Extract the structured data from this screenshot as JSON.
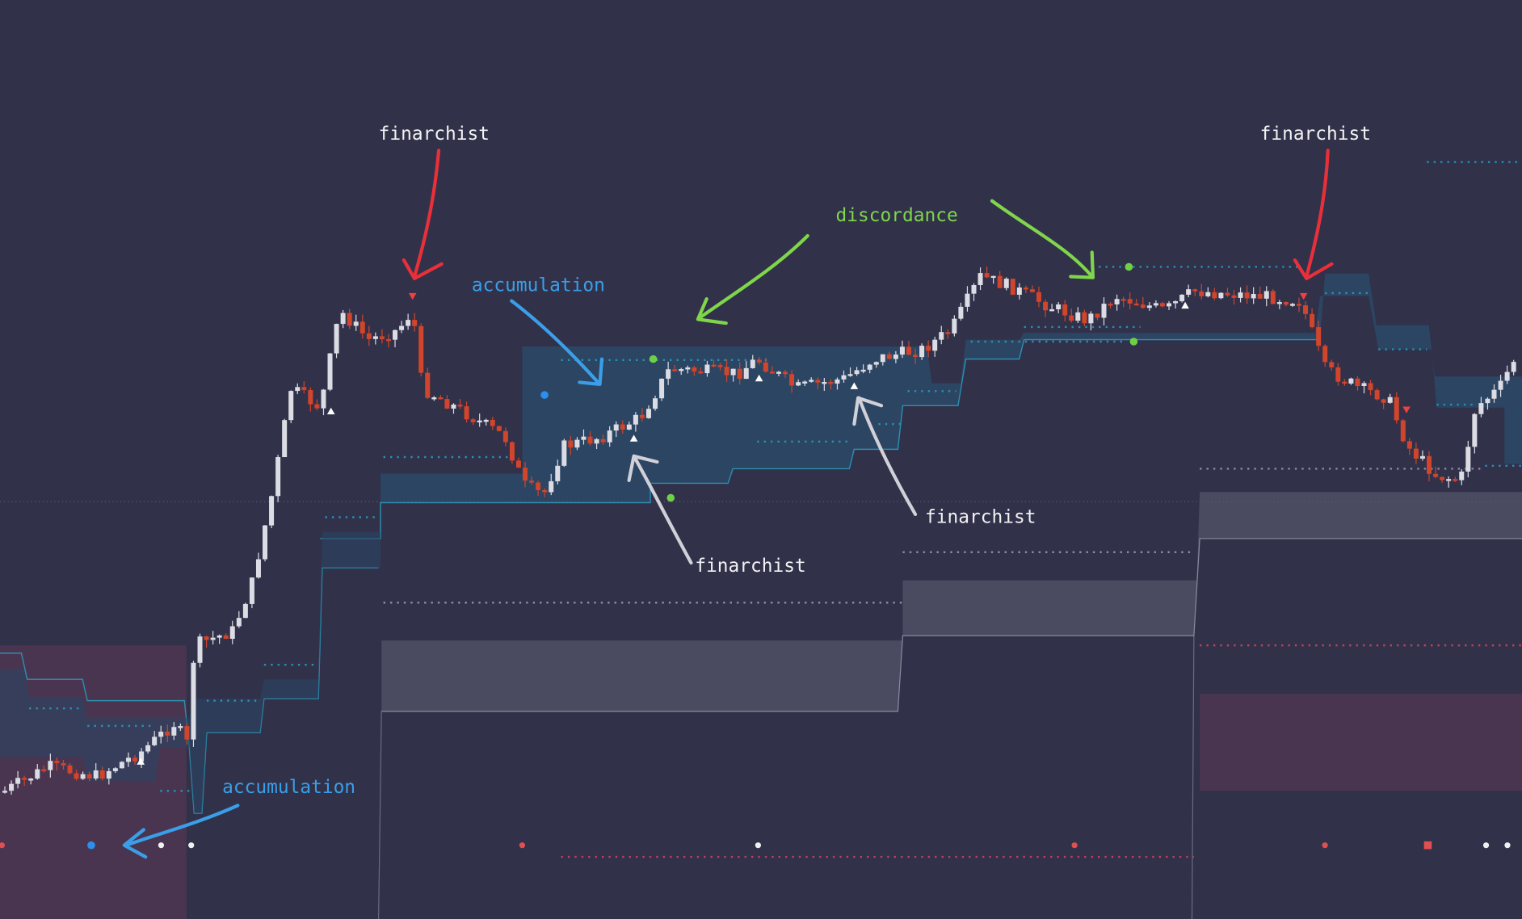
{
  "annotations": [
    {
      "text": "finarchist"
    },
    {
      "text": "finarchist"
    },
    {
      "text": "finarchist"
    },
    {
      "text": "finarchist"
    },
    {
      "text": "accumulation"
    },
    {
      "text": "accumulation"
    },
    {
      "text": "discordance"
    }
  ]
}
